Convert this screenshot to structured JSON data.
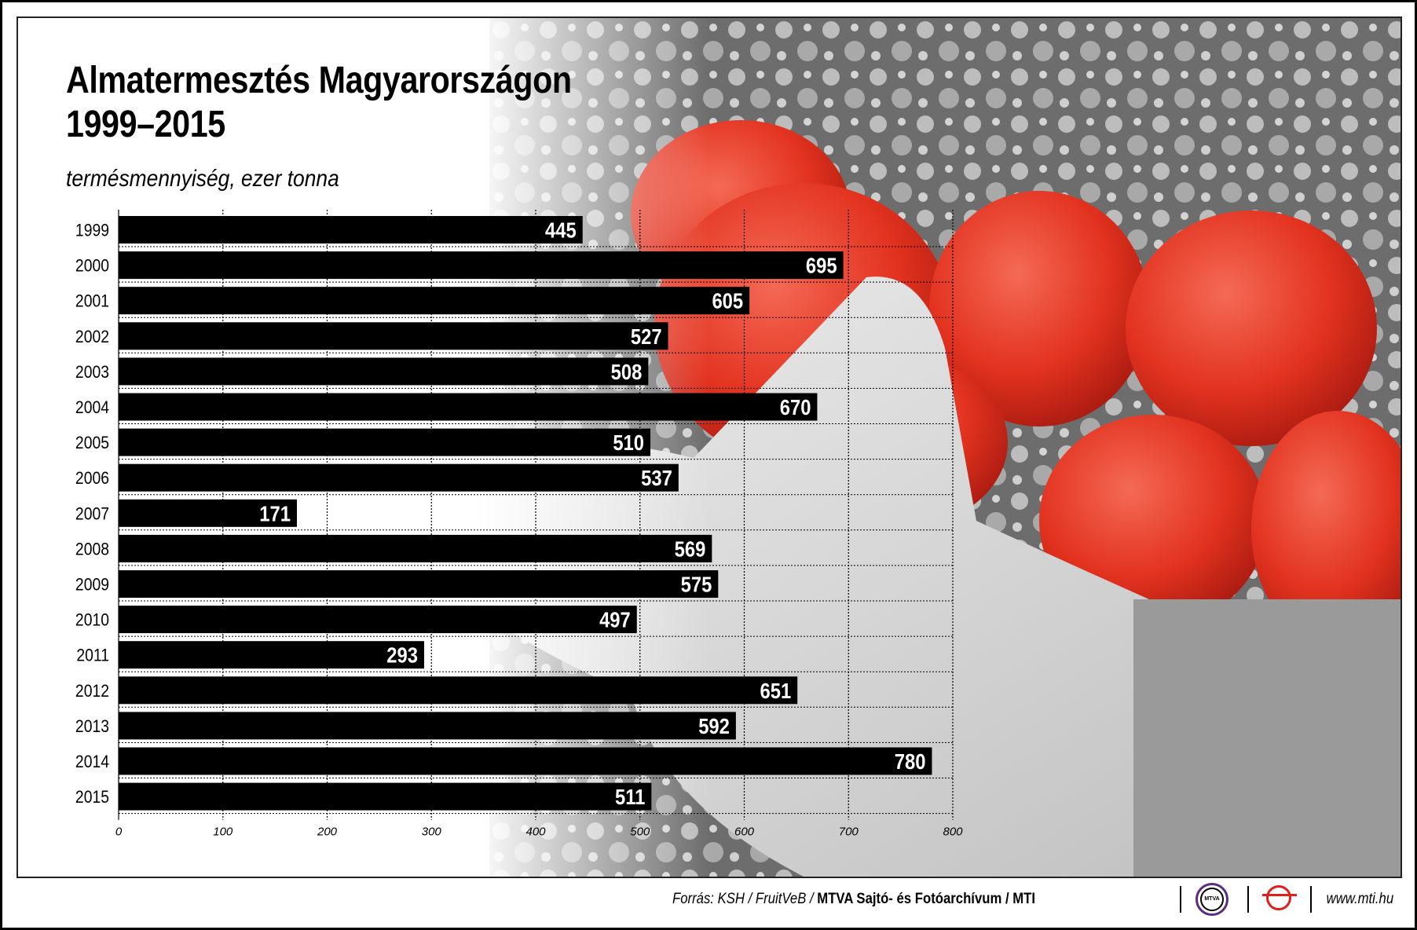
{
  "title_line1": "Almatermesztés Magyarországon",
  "title_line2": "1999–2015",
  "subtitle": "termésmennyiség, ezer tonna",
  "chart_data": {
    "type": "bar",
    "orientation": "horizontal",
    "title": "Almatermesztés Magyarországon 1999–2015",
    "xlabel": "termésmennyiség, ezer tonna",
    "categories": [
      "1999",
      "2000",
      "2001",
      "2002",
      "2003",
      "2004",
      "2005",
      "2006",
      "2007",
      "2008",
      "2009",
      "2010",
      "2011",
      "2012",
      "2013",
      "2014",
      "2015"
    ],
    "values": [
      445,
      695,
      605,
      527,
      508,
      670,
      510,
      537,
      171,
      569,
      575,
      497,
      293,
      651,
      592,
      780,
      511
    ],
    "xlim": [
      0,
      800
    ],
    "xticks": [
      "0",
      "100",
      "200",
      "300",
      "400",
      "500",
      "600",
      "700",
      "800"
    ],
    "grid": true,
    "bar_color": "#000000",
    "label_color": "#ffffff"
  },
  "footer": {
    "source_prefix": "Forrás: KSH / FruitVeB / ",
    "source_bold": "MTVA Sajtó- és Fotóarchívum / MTI",
    "mtva_logo": "MTVA",
    "url": "www.mti.hu",
    "mtva_color": "#5a2d82",
    "mti_color": "#e0201b"
  }
}
